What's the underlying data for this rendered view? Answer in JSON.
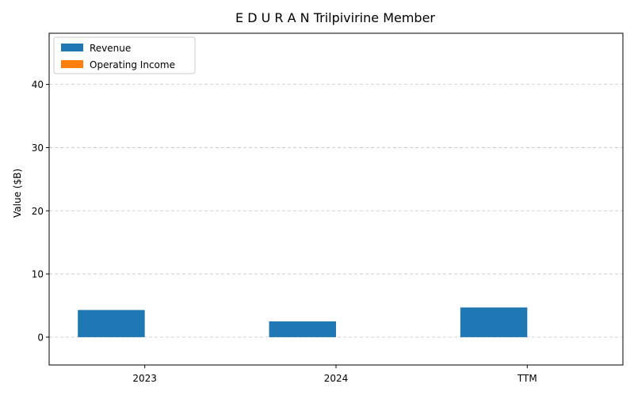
{
  "chart_data": {
    "type": "bar",
    "title": "E D U R A N Trilpivirine Member",
    "xlabel": "",
    "ylabel": "Value ($B)",
    "categories": [
      "2023",
      "2024",
      "TTM"
    ],
    "series": [
      {
        "name": "Revenue",
        "values": [
          4.3,
          2.5,
          4.7
        ],
        "color": "#1f77b4"
      },
      {
        "name": "Operating Income",
        "values": [
          0,
          0,
          0
        ],
        "color": "#ff7f0e"
      }
    ],
    "ylim": [
      -4.4,
      48.1
    ],
    "yticks": [
      0,
      10,
      20,
      30,
      40
    ],
    "grid": true,
    "legend_position": "top-left"
  }
}
